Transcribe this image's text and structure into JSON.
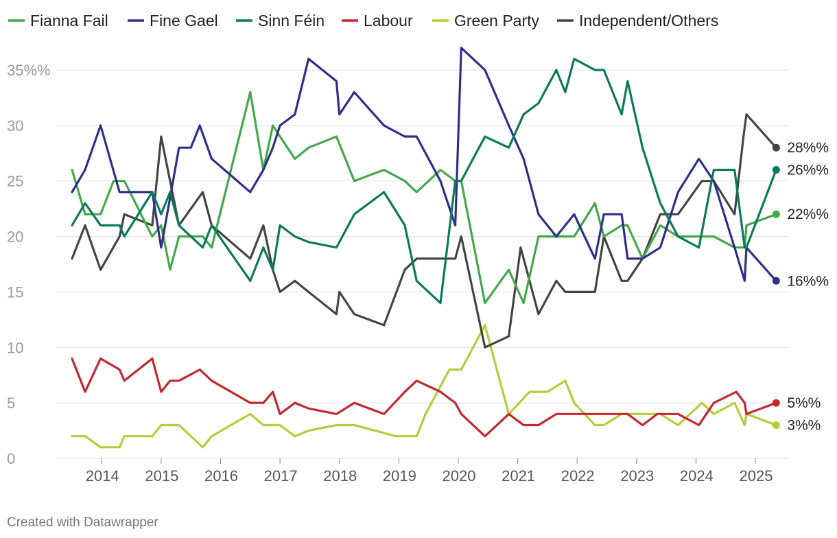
{
  "chart_data": {
    "type": "line",
    "title": "",
    "xlabel": "",
    "ylabel": "",
    "ylim": [
      0,
      37
    ],
    "xlim": [
      2013.35,
      2025.45
    ],
    "grid": true,
    "legend_position": "top",
    "y_ticks": [
      {
        "value": 0,
        "label": "0"
      },
      {
        "value": 5,
        "label": "5"
      },
      {
        "value": 10,
        "label": "10"
      },
      {
        "value": 15,
        "label": "15"
      },
      {
        "value": 20,
        "label": "20"
      },
      {
        "value": 25,
        "label": "25"
      },
      {
        "value": 30,
        "label": "30"
      },
      {
        "value": 35,
        "label": "35%%"
      }
    ],
    "x_ticks": [
      {
        "value": 2014,
        "label": "2014"
      },
      {
        "value": 2015,
        "label": "2015"
      },
      {
        "value": 2016,
        "label": "2016"
      },
      {
        "value": 2017,
        "label": "2017"
      },
      {
        "value": 2018,
        "label": "2018"
      },
      {
        "value": 2019,
        "label": "2019"
      },
      {
        "value": 2020,
        "label": "2020"
      },
      {
        "value": 2021,
        "label": "2021"
      },
      {
        "value": 2022,
        "label": "2022"
      },
      {
        "value": 2023,
        "label": "2023"
      },
      {
        "value": 2024,
        "label": "2024"
      },
      {
        "value": 2025,
        "label": "2025"
      }
    ],
    "series": [
      {
        "name": "Green Party",
        "color": "#b5cc3a",
        "end_label": "3%%",
        "x": [
          2013.5,
          2013.72,
          2013.98,
          2014.3,
          2014.38,
          2014.85,
          2015.0,
          2015.3,
          2015.7,
          2015.85,
          2016.5,
          2016.72,
          2017.0,
          2017.25,
          2017.48,
          2017.95,
          2018.25,
          2018.95,
          2019.3,
          2019.45,
          2019.85,
          2020.05,
          2020.45,
          2020.85,
          2021.2,
          2021.5,
          2021.8,
          2021.95,
          2022.3,
          2022.45,
          2022.75,
          2022.85,
          2023.1,
          2023.4,
          2023.7,
          2024.1,
          2024.3,
          2024.65,
          2024.82,
          2024.85,
          2025.35
        ],
        "values": [
          2,
          2,
          1,
          1,
          2,
          2,
          3,
          3,
          1,
          2,
          4,
          3,
          3,
          2,
          2.5,
          3,
          3,
          2,
          2,
          4,
          8,
          8,
          12,
          4,
          6,
          6,
          7,
          5,
          3,
          3,
          4,
          4,
          4,
          4,
          3,
          5,
          4,
          5,
          3,
          4,
          3
        ]
      },
      {
        "name": "Labour",
        "color": "#c3272f",
        "end_label": "5%%",
        "x": [
          2013.5,
          2013.72,
          2013.98,
          2014.3,
          2014.38,
          2014.85,
          2015.0,
          2015.15,
          2015.3,
          2015.65,
          2015.85,
          2016.5,
          2016.72,
          2016.88,
          2017.0,
          2017.25,
          2017.48,
          2017.95,
          2018.25,
          2018.75,
          2019.1,
          2019.3,
          2019.7,
          2019.95,
          2020.05,
          2020.45,
          2020.85,
          2021.1,
          2021.35,
          2021.65,
          2022.0,
          2022.5,
          2022.75,
          2022.85,
          2023.1,
          2023.35,
          2023.7,
          2024.05,
          2024.3,
          2024.68,
          2024.82,
          2024.85,
          2025.35
        ],
        "values": [
          9,
          6,
          9,
          8,
          7,
          9,
          6,
          7,
          7,
          8,
          7,
          5,
          5,
          6,
          4,
          5,
          4.5,
          4,
          5,
          4,
          6,
          7,
          6,
          5,
          4,
          2,
          4,
          3,
          3,
          4,
          4,
          4,
          4,
          4,
          3,
          4,
          4,
          3,
          5,
          6,
          5,
          4,
          5
        ]
      },
      {
        "name": "Independent/Others",
        "color": "#444444",
        "end_label": "28%%",
        "x": [
          2013.5,
          2013.72,
          2013.98,
          2014.3,
          2014.38,
          2014.85,
          2015.0,
          2015.3,
          2015.7,
          2015.85,
          2016.5,
          2016.72,
          2016.88,
          2017.0,
          2017.25,
          2017.48,
          2017.95,
          2018.0,
          2018.25,
          2018.75,
          2019.1,
          2019.3,
          2019.7,
          2019.95,
          2020.05,
          2020.45,
          2020.85,
          2021.05,
          2021.35,
          2021.65,
          2021.8,
          2021.95,
          2022.3,
          2022.45,
          2022.75,
          2022.85,
          2023.1,
          2023.4,
          2023.7,
          2024.1,
          2024.3,
          2024.65,
          2024.8,
          2024.85,
          2025.35
        ],
        "values": [
          18,
          21,
          17,
          20,
          22,
          21,
          29,
          21,
          24,
          21,
          18,
          21,
          17,
          15,
          16,
          15,
          13,
          15,
          13,
          12,
          17,
          18,
          18,
          18,
          20,
          10,
          11,
          19,
          13,
          16,
          15,
          15,
          15,
          20,
          16,
          16,
          18,
          22,
          22,
          25,
          25,
          22,
          29,
          31,
          28
        ]
      },
      {
        "name": "Fianna Fail",
        "color": "#43a84a",
        "end_label": "22%%",
        "x": [
          2013.5,
          2013.72,
          2013.98,
          2014.2,
          2014.38,
          2014.85,
          2015.0,
          2015.15,
          2015.3,
          2015.7,
          2015.85,
          2016.5,
          2016.72,
          2016.88,
          2017.0,
          2017.25,
          2017.48,
          2017.95,
          2018.25,
          2018.75,
          2019.1,
          2019.3,
          2019.7,
          2019.95,
          2020.05,
          2020.45,
          2020.85,
          2021.1,
          2021.35,
          2021.65,
          2021.8,
          2021.95,
          2022.3,
          2022.45,
          2022.75,
          2022.85,
          2023.1,
          2023.4,
          2023.7,
          2024.1,
          2024.3,
          2024.65,
          2024.82,
          2024.85,
          2025.35
        ],
        "values": [
          26,
          22,
          22,
          25,
          25,
          20,
          21,
          17,
          20,
          20,
          19,
          33,
          26,
          30,
          29,
          27,
          28,
          29,
          25,
          26,
          25,
          24,
          26,
          25,
          25,
          14,
          17,
          14,
          20,
          20,
          20,
          20,
          23,
          20,
          21,
          21,
          18,
          21,
          20,
          20,
          20,
          19,
          19,
          21,
          22
        ]
      },
      {
        "name": "Fine Gael",
        "color": "#2d2f8a",
        "end_label": "16%%",
        "x": [
          2013.5,
          2013.72,
          2013.98,
          2014.3,
          2014.38,
          2014.85,
          2015.0,
          2015.3,
          2015.5,
          2015.65,
          2015.85,
          2016.5,
          2016.72,
          2016.88,
          2017.0,
          2017.25,
          2017.48,
          2017.95,
          2018.0,
          2018.25,
          2018.75,
          2019.1,
          2019.3,
          2019.7,
          2019.95,
          2020.05,
          2020.45,
          2020.85,
          2021.1,
          2021.35,
          2021.65,
          2021.8,
          2021.95,
          2022.3,
          2022.45,
          2022.75,
          2022.85,
          2023.1,
          2023.4,
          2023.7,
          2024.05,
          2024.3,
          2024.65,
          2024.82,
          2024.85,
          2025.35
        ],
        "values": [
          24,
          26,
          30,
          24,
          24,
          24,
          19,
          28,
          28,
          30,
          27,
          24,
          26,
          28,
          30,
          31,
          36,
          34,
          31,
          33,
          30,
          29,
          29,
          25,
          21,
          37,
          35,
          30,
          27,
          22,
          20,
          21,
          22,
          18,
          22,
          22,
          18,
          18,
          19,
          24,
          27,
          25,
          19,
          16,
          19,
          16
        ]
      },
      {
        "name": "Sinn Féin",
        "color": "#0a7a5a",
        "end_label": "26%%",
        "x": [
          2013.5,
          2013.72,
          2013.98,
          2014.3,
          2014.38,
          2014.85,
          2015.0,
          2015.15,
          2015.3,
          2015.7,
          2015.85,
          2016.5,
          2016.72,
          2016.88,
          2017.0,
          2017.25,
          2017.48,
          2017.95,
          2018.25,
          2018.75,
          2019.1,
          2019.3,
          2019.7,
          2019.95,
          2020.05,
          2020.45,
          2020.85,
          2021.1,
          2021.35,
          2021.65,
          2021.8,
          2021.95,
          2022.3,
          2022.45,
          2022.75,
          2022.85,
          2023.1,
          2023.4,
          2023.7,
          2024.05,
          2024.3,
          2024.65,
          2024.82,
          2024.85,
          2025.35
        ],
        "values": [
          21,
          23,
          21,
          21,
          20,
          24,
          22,
          24,
          21,
          19,
          21,
          16,
          19,
          17,
          21,
          20,
          19.5,
          19,
          22,
          24,
          21,
          16,
          14,
          25,
          25,
          29,
          28,
          31,
          32,
          35,
          33,
          36,
          35,
          35,
          31,
          34,
          28,
          23,
          20,
          19,
          26,
          26,
          19,
          19,
          26
        ]
      }
    ],
    "credit": "Created with Datawrapper"
  },
  "legend": [
    {
      "name": "Fianna Fail",
      "color": "#43a84a"
    },
    {
      "name": "Fine Gael",
      "color": "#2d2f8a"
    },
    {
      "name": "Sinn Féin",
      "color": "#0a7a5a"
    },
    {
      "name": "Labour",
      "color": "#c3272f"
    },
    {
      "name": "Green Party",
      "color": "#b5cc3a"
    },
    {
      "name": "Independent/Others",
      "color": "#444444"
    }
  ]
}
